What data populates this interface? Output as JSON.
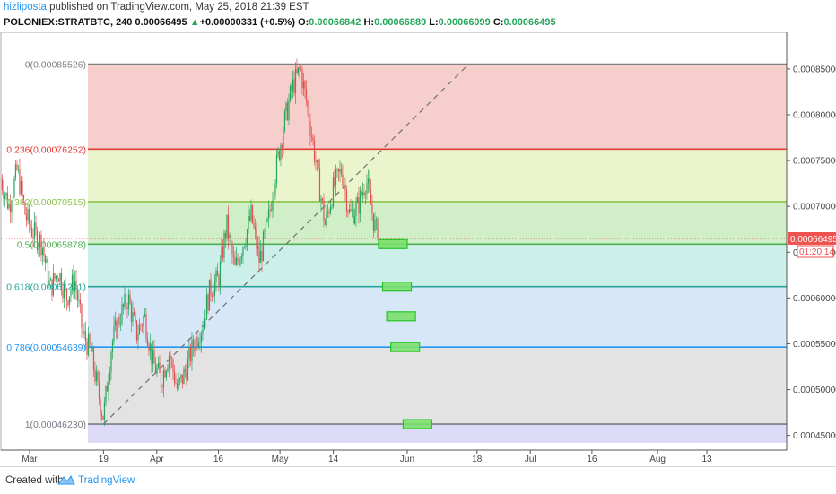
{
  "header": {
    "author": "hizliposta",
    "published": " published on TradingView.com, May 25, 2018 21:39 EST",
    "symbol": "POLONIEX:STRATBTC, 240",
    "last": "0.00066495",
    "change_arrow": "▲",
    "change": "+0.00000331 (+0.5%)",
    "o_label": "O:",
    "o_value": "0.00066842",
    "h_label": "H:",
    "h_value": "0.00066889",
    "l_label": "L:",
    "l_value": "0.00066099",
    "c_label": "C:",
    "c_value": "0.00066495"
  },
  "footer": {
    "created_with": "Created with",
    "brand": "TradingView"
  },
  "price_badge": {
    "value": "0.00066495",
    "countdown": "01:20:14"
  },
  "colors": {
    "up": "#26a65b",
    "down": "#e05252",
    "badge": "#ef5350",
    "fib_lines": [
      "#7f7f7f",
      "#e53935",
      "#8bc34a",
      "#4caf50",
      "#26a69a",
      "#2196f3",
      "#787b86"
    ],
    "fib_fills": [
      "#f4c7c3",
      "#e8f3c4",
      "#c8ecc0",
      "#c4ece6",
      "#cfe4f7",
      "#dedede",
      "#d6d4f4"
    ]
  },
  "chart_data": {
    "type": "line",
    "title": "",
    "x_ticks": [
      "Mar",
      "19",
      "Apr",
      "16",
      "May",
      "14",
      "Jun",
      "18",
      "Jul",
      "16",
      "Aug",
      "13"
    ],
    "y_ticks": [
      "0.00045000",
      "0.00050000",
      "0.00055000",
      "0.00060000",
      "0.00065000",
      "0.00070000",
      "0.00075000",
      "0.00080000",
      "0.00085000"
    ],
    "y_range": [
      0.000434,
      0.00089
    ],
    "fib_levels": [
      {
        "ratio": "0",
        "price": "0.00085526",
        "label": "0(0.00085526)"
      },
      {
        "ratio": "0.236",
        "price": "0.00076252",
        "label": "0.236(0.00076252)"
      },
      {
        "ratio": "0.382",
        "price": "0.00070515",
        "label": "0.382(0.00070515)"
      },
      {
        "ratio": "0.5",
        "price": "0.00065878",
        "label": "0.5(0.00065878)"
      },
      {
        "ratio": "0.618",
        "price": "0.00061241",
        "label": "0.618(0.00061241)"
      },
      {
        "ratio": "0.786",
        "price": "0.00054639",
        "label": "0.786(0.00054639)"
      },
      {
        "ratio": "1",
        "price": "0.00046230",
        "label": "1(0.00046230)"
      }
    ],
    "fib_extra_bottom_price": 0.000442,
    "trend_line": {
      "start": [
        "Mar 19",
        0.0004623
      ],
      "end": [
        "Jun 16",
        0.00085526
      ]
    },
    "price_path": [
      [
        "Feb 22",
        0.00073
      ],
      [
        "Feb 24",
        0.0007
      ],
      [
        "Feb 26",
        0.00074
      ],
      [
        "Feb 28",
        0.00069
      ],
      [
        "Mar 2",
        0.00067
      ],
      [
        "Mar 4",
        0.00066
      ],
      [
        "Mar 6",
        0.00061
      ],
      [
        "Mar 8",
        0.00063
      ],
      [
        "Mar 10",
        0.0006
      ],
      [
        "Mar 12",
        0.00062
      ],
      [
        "Mar 14",
        0.00056
      ],
      [
        "Mar 16",
        0.00054
      ],
      [
        "Mar 18",
        0.00049
      ],
      [
        "Mar 19",
        0.00047
      ],
      [
        "Mar 21",
        0.00055
      ],
      [
        "Mar 23",
        0.00058
      ],
      [
        "Mar 25",
        0.0006
      ],
      [
        "Mar 27",
        0.00056
      ],
      [
        "Mar 29",
        0.00058
      ],
      [
        "Mar 31",
        0.00053
      ],
      [
        "Apr 2",
        0.00051
      ],
      [
        "Apr 4",
        0.00054
      ],
      [
        "Apr 6",
        0.0005
      ],
      [
        "Apr 8",
        0.00052
      ],
      [
        "Apr 10",
        0.00055
      ],
      [
        "Apr 12",
        0.00057
      ],
      [
        "Apr 14",
        0.00061
      ],
      [
        "Apr 16",
        0.00062
      ],
      [
        "Apr 18",
        0.00068
      ],
      [
        "Apr 20",
        0.00063
      ],
      [
        "Apr 22",
        0.00066
      ],
      [
        "Apr 24",
        0.00069
      ],
      [
        "Apr 26",
        0.00064
      ],
      [
        "Apr 28",
        0.00068
      ],
      [
        "Apr 30",
        0.00074
      ],
      [
        "May 2",
        0.00079
      ],
      [
        "May 4",
        0.00083
      ],
      [
        "May 6",
        0.00085
      ],
      [
        "May 8",
        0.0008
      ],
      [
        "May 10",
        0.00074
      ],
      [
        "May 12",
        0.00068
      ],
      [
        "May 14",
        0.00072
      ],
      [
        "May 16",
        0.00074
      ],
      [
        "May 18",
        0.00069
      ],
      [
        "May 20",
        0.0007
      ],
      [
        "May 22",
        0.00073
      ],
      [
        "May 24",
        0.00068
      ],
      [
        "May 25",
        0.00066495
      ]
    ],
    "target_boxes": [
      {
        "date_from": "May 25",
        "date_to": "Jun 1",
        "price": 0.00065878
      },
      {
        "date_from": "May 26",
        "date_to": "Jun 2",
        "price": 0.00061241
      },
      {
        "date_from": "May 27",
        "date_to": "Jun 3",
        "price": 0.00058
      },
      {
        "date_from": "May 28",
        "date_to": "Jun 4",
        "price": 0.00054639
      },
      {
        "date_from": "May 31",
        "date_to": "Jun 7",
        "price": 0.0004623
      }
    ]
  }
}
